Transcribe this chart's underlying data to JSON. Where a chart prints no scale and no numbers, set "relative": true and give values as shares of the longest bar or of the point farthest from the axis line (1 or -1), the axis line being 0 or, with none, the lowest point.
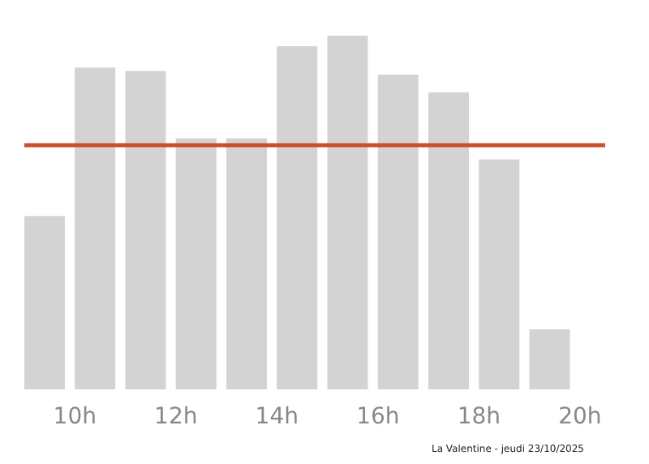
{
  "chart_data": {
    "type": "bar",
    "relative": true,
    "x": [
      9.4,
      10.4,
      11.4,
      12.4,
      13.4,
      14.4,
      15.4,
      16.4,
      17.4,
      18.4,
      19.4
    ],
    "values": [
      0.49,
      0.91,
      0.9,
      0.71,
      0.71,
      0.97,
      1,
      0.89,
      0.84,
      0.65,
      0.17
    ],
    "color": "#d3d3d3",
    "xlim": [
      9,
      20.5
    ],
    "xticks": [
      {
        "value": 10,
        "label": "10h"
      },
      {
        "value": 12,
        "label": "12h"
      },
      {
        "value": 14,
        "label": "14h"
      },
      {
        "value": 16,
        "label": "16h"
      },
      {
        "value": 18,
        "label": "18h"
      },
      {
        "value": 20,
        "label": "20h"
      }
    ],
    "ref_lines": [
      {
        "axis": "y",
        "value": 0.69,
        "label": null,
        "color": "#c9502a"
      }
    ],
    "annotations": [
      "La Valentine - jeudi 23/10/2025"
    ],
    "grid": false
  }
}
